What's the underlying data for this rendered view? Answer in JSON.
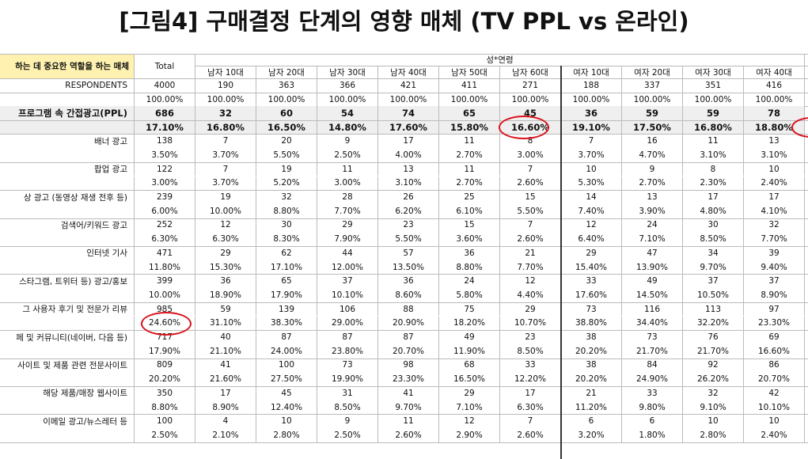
{
  "title": "[그림4] 구매결정 단계의 영향 매체 (TV PPL vs 온라인)",
  "table": {
    "header": {
      "label": "하는 데 중요한 역할을 하는 매체",
      "total": "Total",
      "group": "성*연령",
      "columns": [
        "남자 10대",
        "남자 20대",
        "남자 30대",
        "남자 40대",
        "남자 50대",
        "남자 60대",
        "여자 10대",
        "여자 20대",
        "여자 30대",
        "여자 40대"
      ]
    },
    "rows": [
      {
        "label": "RESPONDENTS",
        "counts": [
          4000,
          190,
          363,
          366,
          421,
          411,
          271,
          188,
          337,
          351,
          416
        ],
        "percents": [
          "100.00%",
          "100.00%",
          "100.00%",
          "100.00%",
          "100.00%",
          "100.00%",
          "100.00%",
          "100.00%",
          "100.00%",
          "100.00%",
          "100.00%"
        ]
      },
      {
        "label": "프로그램 속 간접광고(PPL)",
        "counts": [
          686,
          32,
          60,
          54,
          74,
          65,
          45,
          36,
          59,
          59,
          78
        ],
        "percents": [
          "17.10%",
          "16.80%",
          "16.50%",
          "14.80%",
          "17.60%",
          "15.80%",
          "16.60%",
          "19.10%",
          "17.50%",
          "16.80%",
          "18.80%"
        ]
      },
      {
        "label": "배너 광고",
        "counts": [
          138,
          7,
          20,
          9,
          17,
          11,
          8,
          7,
          16,
          11,
          13
        ],
        "percents": [
          "3.50%",
          "3.70%",
          "5.50%",
          "2.50%",
          "4.00%",
          "2.70%",
          "3.00%",
          "3.70%",
          "4.70%",
          "3.10%",
          "3.10%"
        ]
      },
      {
        "label": "팝업 광고",
        "counts": [
          122,
          7,
          19,
          11,
          13,
          11,
          7,
          10,
          9,
          8,
          10
        ],
        "percents": [
          "3.00%",
          "3.70%",
          "5.20%",
          "3.00%",
          "3.10%",
          "2.70%",
          "2.60%",
          "5.30%",
          "2.70%",
          "2.30%",
          "2.40%"
        ]
      },
      {
        "label": "상 광고 (동영상 재생 전후 등)",
        "counts": [
          239,
          19,
          32,
          28,
          26,
          25,
          15,
          14,
          13,
          17,
          17
        ],
        "percents": [
          "6.00%",
          "10.00%",
          "8.80%",
          "7.70%",
          "6.20%",
          "6.10%",
          "5.50%",
          "7.40%",
          "3.90%",
          "4.80%",
          "4.10%"
        ]
      },
      {
        "label": "검색어/키워드 광고",
        "counts": [
          252,
          12,
          30,
          29,
          23,
          15,
          7,
          12,
          24,
          30,
          32
        ],
        "percents": [
          "6.30%",
          "6.30%",
          "8.30%",
          "7.90%",
          "5.50%",
          "3.60%",
          "2.60%",
          "6.40%",
          "7.10%",
          "8.50%",
          "7.70%"
        ]
      },
      {
        "label": "인터넷 기사",
        "counts": [
          471,
          29,
          62,
          44,
          57,
          36,
          21,
          29,
          47,
          34,
          39
        ],
        "percents": [
          "11.80%",
          "15.30%",
          "17.10%",
          "12.00%",
          "13.50%",
          "8.80%",
          "7.70%",
          "15.40%",
          "13.90%",
          "9.70%",
          "9.40%"
        ]
      },
      {
        "label": "스타그램, 트위터 등) 광고/홍보",
        "counts": [
          399,
          36,
          65,
          37,
          36,
          24,
          12,
          33,
          49,
          37,
          37
        ],
        "percents": [
          "10.00%",
          "18.90%",
          "17.90%",
          "10.10%",
          "8.60%",
          "5.80%",
          "4.40%",
          "17.60%",
          "14.50%",
          "10.50%",
          "8.90%"
        ]
      },
      {
        "label": "그 사용자 후기 및 전문가 리뷰",
        "counts": [
          985,
          59,
          139,
          106,
          88,
          75,
          29,
          73,
          116,
          113,
          97
        ],
        "percents": [
          "24.60%",
          "31.10%",
          "38.30%",
          "29.00%",
          "20.90%",
          "18.20%",
          "10.70%",
          "38.80%",
          "34.40%",
          "32.20%",
          "23.30%"
        ]
      },
      {
        "label": "페 및 커뮤니티(네이버, 다음 등)",
        "counts": [
          717,
          40,
          87,
          87,
          87,
          49,
          23,
          38,
          73,
          76,
          69
        ],
        "percents": [
          "17.90%",
          "21.10%",
          "24.00%",
          "23.80%",
          "20.70%",
          "11.90%",
          "8.50%",
          "20.20%",
          "21.70%",
          "21.70%",
          "16.60%"
        ]
      },
      {
        "label": "사이트 및 제품 관련 전문사이트",
        "counts": [
          809,
          41,
          100,
          73,
          98,
          68,
          33,
          38,
          84,
          92,
          86
        ],
        "percents": [
          "20.20%",
          "21.60%",
          "27.50%",
          "19.90%",
          "23.30%",
          "16.50%",
          "12.20%",
          "20.20%",
          "24.90%",
          "26.20%",
          "20.70%"
        ]
      },
      {
        "label": "해당 제품/매장 웹사이트",
        "counts": [
          350,
          17,
          45,
          31,
          41,
          29,
          17,
          21,
          33,
          32,
          42
        ],
        "percents": [
          "8.80%",
          "8.90%",
          "12.40%",
          "8.50%",
          "9.70%",
          "7.10%",
          "6.30%",
          "11.20%",
          "9.80%",
          "9.10%",
          "10.10%"
        ]
      },
      {
        "label": "이메일 광고/뉴스레터 등",
        "counts": [
          100,
          4,
          10,
          9,
          11,
          12,
          7,
          6,
          6,
          10,
          10
        ],
        "percents": [
          "2.50%",
          "2.10%",
          "2.80%",
          "2.50%",
          "2.60%",
          "2.90%",
          "2.60%",
          "3.20%",
          "1.80%",
          "2.80%",
          "2.40%"
        ]
      }
    ]
  }
}
